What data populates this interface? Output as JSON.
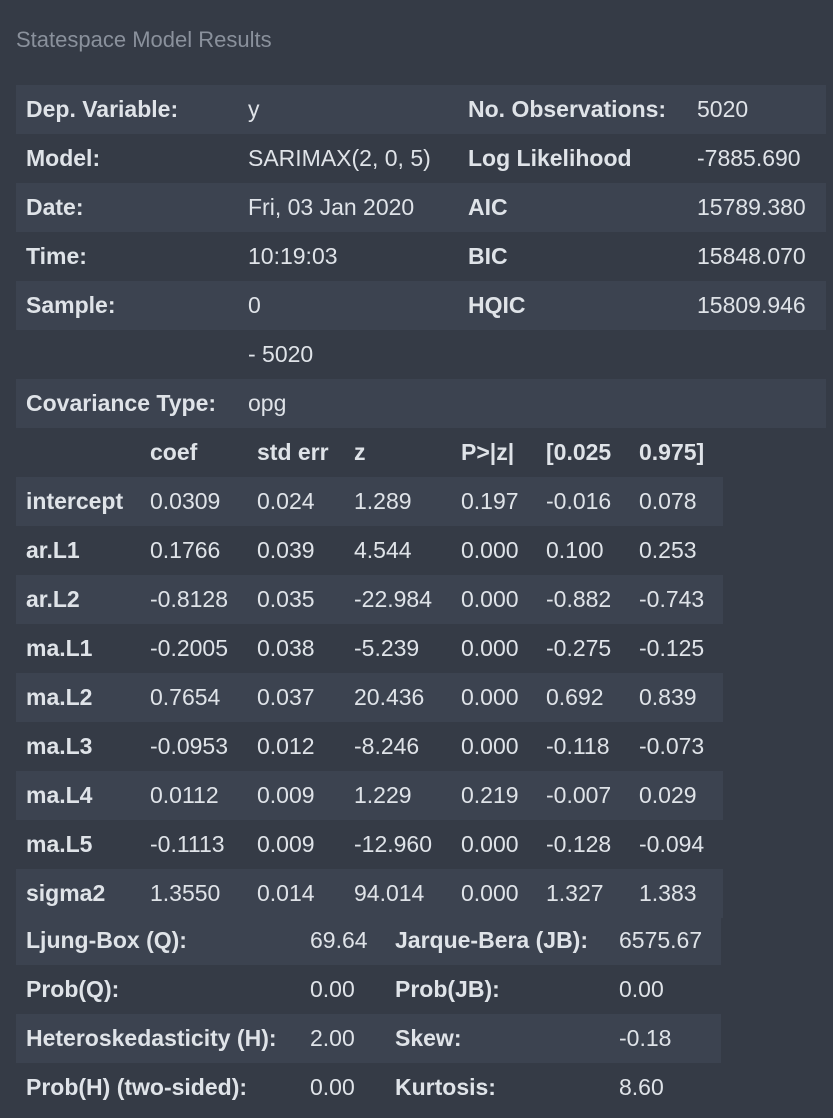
{
  "caption": "Statespace Model Results",
  "summary": [
    [
      "Dep. Variable:",
      "y",
      "No. Observations:",
      "5020"
    ],
    [
      "Model:",
      "SARIMAX(2, 0, 5)",
      "Log Likelihood",
      "-7885.690"
    ],
    [
      "Date:",
      "Fri, 03 Jan 2020",
      "AIC",
      "15789.380"
    ],
    [
      "Time:",
      "10:19:03",
      "BIC",
      "15848.070"
    ],
    [
      "Sample:",
      "0",
      "HQIC",
      "15809.946"
    ],
    [
      "",
      "- 5020",
      "",
      ""
    ],
    [
      "Covariance Type:",
      "opg",
      "",
      ""
    ]
  ],
  "coef_header": [
    "",
    "coef",
    "std err",
    "z",
    "P>|z|",
    "[0.025",
    "0.975]"
  ],
  "coef_rows": [
    [
      "intercept",
      "0.0309",
      "0.024",
      "1.289",
      "0.197",
      "-0.016",
      "0.078"
    ],
    [
      "ar.L1",
      "0.1766",
      "0.039",
      "4.544",
      "0.000",
      "0.100",
      "0.253"
    ],
    [
      "ar.L2",
      "-0.8128",
      "0.035",
      "-22.984",
      "0.000",
      "-0.882",
      "-0.743"
    ],
    [
      "ma.L1",
      "-0.2005",
      "0.038",
      "-5.239",
      "0.000",
      "-0.275",
      "-0.125"
    ],
    [
      "ma.L2",
      "0.7654",
      "0.037",
      "20.436",
      "0.000",
      "0.692",
      "0.839"
    ],
    [
      "ma.L3",
      "-0.0953",
      "0.012",
      "-8.246",
      "0.000",
      "-0.118",
      "-0.073"
    ],
    [
      "ma.L4",
      "0.0112",
      "0.009",
      "1.229",
      "0.219",
      "-0.007",
      "0.029"
    ],
    [
      "ma.L5",
      "-0.1113",
      "0.009",
      "-12.960",
      "0.000",
      "-0.128",
      "-0.094"
    ],
    [
      "sigma2",
      "1.3550",
      "0.014",
      "94.014",
      "0.000",
      "1.327",
      "1.383"
    ]
  ],
  "diagnostics": [
    [
      "Ljung-Box (Q):",
      "69.64",
      "Jarque-Bera (JB):",
      "6575.67"
    ],
    [
      "Prob(Q):",
      "0.00",
      "Prob(JB):",
      "0.00"
    ],
    [
      "Heteroskedasticity (H):",
      "2.00",
      "Skew:",
      "-0.18"
    ],
    [
      "Prob(H) (two-sided):",
      "0.00",
      "Kurtosis:",
      "8.60"
    ]
  ]
}
